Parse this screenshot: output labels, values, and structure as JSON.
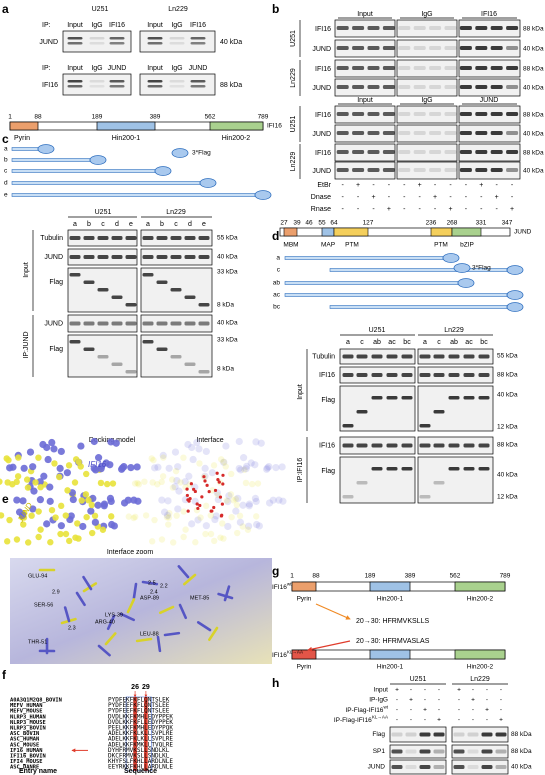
{
  "a": {
    "letter": "a",
    "groups": [
      "U251",
      "Ln229"
    ],
    "rows": [
      {
        "ip": "IP:",
        "lanes": [
          "Input",
          "IgG",
          "IFI16"
        ],
        "blot": "JUND",
        "kda": "40 kDa"
      },
      {
        "ip": "IP:",
        "lanes": [
          "Input",
          "IgG",
          "JUND"
        ],
        "blot": "IFI16",
        "kda": "88 kDa"
      }
    ]
  },
  "b": {
    "letter": "b",
    "cells": [
      "U251",
      "Ln229"
    ],
    "blocks": [
      {
        "lanes": [
          "Input",
          "IgG",
          "IFI16"
        ],
        "rows": [
          "IFI16",
          "JUND",
          "IFI16",
          "JUND"
        ],
        "kda": [
          "88 kDa",
          "40 kDa",
          "88 kDa",
          "40 kDa"
        ]
      },
      {
        "lanes": [
          "Input",
          "IgG",
          "JUND"
        ],
        "rows": [
          "IFI16",
          "JUND",
          "IFI16",
          "JUND"
        ],
        "kda": [
          "88 kDa",
          "40 kDa",
          "88 kDa",
          "40 kDa"
        ]
      }
    ],
    "treatments": [
      {
        "name": "EtBr",
        "signs": [
          "-",
          "+",
          "-",
          "-",
          "-",
          "+",
          "-",
          "-",
          "-",
          "+",
          "-",
          "-"
        ]
      },
      {
        "name": "Dnase",
        "signs": [
          "-",
          "-",
          "+",
          "-",
          "-",
          "-",
          "+",
          "-",
          "-",
          "-",
          "+",
          "-"
        ]
      },
      {
        "name": "Rnase",
        "signs": [
          "-",
          "-",
          "-",
          "+",
          "-",
          "-",
          "-",
          "+",
          "-",
          "-",
          "-",
          "+"
        ]
      }
    ]
  },
  "c": {
    "letter": "c",
    "domain": {
      "positions": [
        1,
        88,
        189,
        389,
        562,
        789
      ],
      "protein": "IFI16",
      "domains": [
        "Pyrin",
        "Hin200-1",
        "Hin200-2"
      ],
      "tag": "3*Flag",
      "constructs": [
        "a",
        "b",
        "c",
        "d",
        "e"
      ]
    },
    "blot": {
      "groups": [
        "U251",
        "Ln229"
      ],
      "lanes": [
        "a",
        "b",
        "c",
        "d",
        "e"
      ],
      "rows": [
        "Tubulin",
        "JUND",
        "Flag",
        "JUND",
        "Flag"
      ],
      "kda": [
        "55 kDa",
        "40 kDa",
        "33 kDa",
        "8 kDa",
        "40 kDa",
        "33 kDa",
        "8 kDa"
      ],
      "sections": [
        "Input",
        "IP:JUND"
      ]
    }
  },
  "d": {
    "letter": "d",
    "domain": {
      "positions": [
        27,
        39,
        46,
        55,
        64,
        127,
        236,
        268,
        331,
        347
      ],
      "protein": "JUND",
      "domains": [
        "MBM",
        "MAP",
        "PTM",
        "PTM",
        "bZIP"
      ],
      "tag": "3*Flag",
      "constructs": [
        "a",
        "c",
        "ab",
        "ac",
        "bc"
      ]
    },
    "blot": {
      "groups": [
        "U251",
        "Ln229"
      ],
      "lanes": [
        "a",
        "c",
        "ab",
        "ac",
        "bc"
      ],
      "rows": [
        "Tubulin",
        "IFI16",
        "Flag",
        "IFI16",
        "Flag"
      ],
      "kda": [
        "55 kDa",
        "88 kDa",
        "40 kDa",
        "12 kDa",
        "88 kDa",
        "40 kDa",
        "12 kDa"
      ],
      "sections": [
        "Input",
        "IP:IFI16"
      ]
    }
  },
  "e": {
    "letter": "e",
    "titles": [
      "Docking model",
      "Interface"
    ],
    "proteins": [
      "IFI16",
      "JUND"
    ],
    "zoom": "Interface zoom",
    "residues": [
      "GLU-94",
      "SER-56",
      "THR-51",
      "ARG-40",
      "LYS-39",
      "ASP-89",
      "LEU-88",
      "MET-85"
    ],
    "distances": [
      "2.9",
      "2.5",
      "2.4",
      "2.2",
      "2.3"
    ]
  },
  "f": {
    "letter": "f",
    "marks": [
      26,
      29
    ],
    "entries": [
      "A0A3Q1M2Q8_BOVIN",
      "MEFV_HUMAN",
      "MEFV_MOUSE",
      "NLRP3_HUMAN",
      "NLRP3_MOUSE",
      "NLRP3_BOVIN",
      "ASC_BOVIN",
      "ASC_HUMAN",
      "ASC_MOUSE",
      "IF16_HUMAN",
      "IFI16_BOVIN",
      "IFI4_MOUSE",
      "ASC_DANRE"
    ],
    "sequences": [
      "PYDFEKFKFLQNTSLEK",
      "PYDFEEFKFLQNTSLEE",
      "PYDFEEFKFLQNTSLEE",
      "DVDLKKFKMHLEDYPPEK",
      "DVDLKKFKFLLEDYPPEK",
      "PEELKKFKMHLEDYPPQK",
      "ADELKKFKLKLLSVPLRE",
      "ADELKKFKLKLLSVPLRE",
      "ADELKKFKMKLLTVQLRE",
      "DYHFRMVKSLLSNDLKL",
      "DKCFRMVKSLLSNDLKL",
      "KHYFSLFKHLLARDLNLE",
      "EEYRKKFKHLLARDLNLE"
    ],
    "axis": [
      "Entry name",
      "Sequence"
    ]
  },
  "g": {
    "letter": "g",
    "positions": [
      1,
      88,
      189,
      389,
      562,
      789
    ],
    "wt": {
      "name": "IFI16",
      "sup": "wt"
    },
    "mut": {
      "name": "IFI16",
      "sup": "KL→AA"
    },
    "domains": [
      "Pyrin",
      "Hin200-1",
      "Hin200-2"
    ],
    "wt_seq": "20→30: HFRMVKSLLS",
    "mut_seq": "20→30: HFRMVASLAS"
  },
  "h": {
    "letter": "h",
    "groups": [
      "U251",
      "Ln229"
    ],
    "treatments": [
      {
        "name": "Input",
        "signs": [
          "+",
          "-",
          "-",
          "-",
          "+",
          "-",
          "-",
          "-"
        ]
      },
      {
        "name": "IP-IgG",
        "signs": [
          "-",
          "+",
          "-",
          "-",
          "-",
          "+",
          "-",
          "-"
        ]
      },
      {
        "name": "IP-Flag-IFI16",
        "sup": "wt",
        "signs": [
          "-",
          "-",
          "+",
          "-",
          "-",
          "-",
          "+",
          "-"
        ]
      },
      {
        "name": "IP-Flag-IFI16",
        "sup": "KL→AA",
        "signs": [
          "-",
          "-",
          "-",
          "+",
          "-",
          "-",
          "-",
          "+"
        ]
      }
    ],
    "rows": [
      "Flag",
      "SP1",
      "JUND"
    ],
    "kda": [
      "88 kDa",
      "88 kDa",
      "40 kDa"
    ]
  }
}
